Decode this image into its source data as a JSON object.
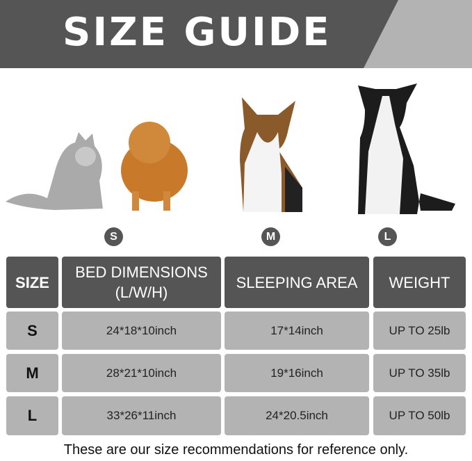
{
  "title": "SIZE GUIDE",
  "colors": {
    "dark": "#555555",
    "light": "#b3b3b3"
  },
  "pets": [
    "cat",
    "pomeranian",
    "corgi",
    "border-collie"
  ],
  "badges": [
    "S",
    "M",
    "L"
  ],
  "table": {
    "headers": [
      "SIZE",
      "BED DIMENSIONS\n(L/W/H)",
      "SLEEPING AREA",
      "WEIGHT"
    ],
    "rows": [
      [
        "S",
        "24*18*10inch",
        "17*14inch",
        "UP TO 25lb"
      ],
      [
        "M",
        "28*21*10inch",
        "19*16inch",
        "UP TO 35lb"
      ],
      [
        "L",
        "33*26*11inch",
        "24*20.5inch",
        "UP TO 50lb"
      ]
    ]
  },
  "footer": "These are our size recommendations for reference only."
}
